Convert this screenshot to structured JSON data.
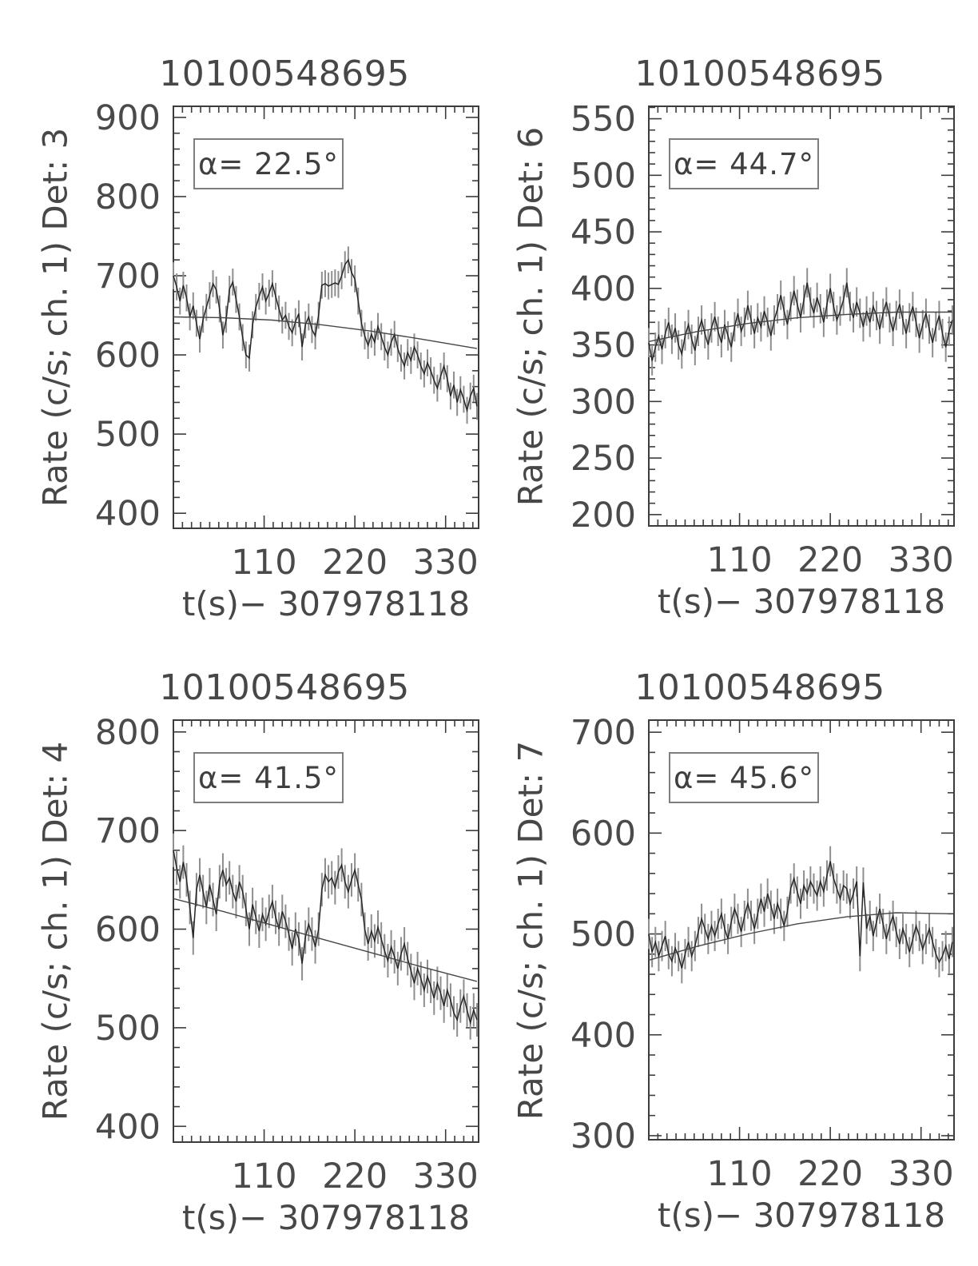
{
  "colors": {
    "background": "#ffffff",
    "axis": "#3c3c3c",
    "text": "#4a4a4a",
    "data_line": "#262626",
    "error_bar": "#8e8e8e",
    "trend_line": "#474747",
    "annotation_border": "#7e7e7e"
  },
  "chart_data": [
    {
      "type": "line",
      "title": "10100548695",
      "ylabel": "Rate (c/s; ch. 1) Det: 3",
      "xlabel": "t(s)−  307978118",
      "detector": 3,
      "alpha_deg": 22.5,
      "annotation": "α=  22.5°",
      "xlim": [
        0,
        370
      ],
      "ylim": [
        381,
        914
      ],
      "xticks": [
        110,
        220,
        330
      ],
      "xtick_minor_step": 11,
      "yticks": [
        400,
        500,
        600,
        700,
        800,
        900
      ],
      "ytick_minor_step": 20,
      "t_start": 0,
      "t_step": 4,
      "error_bar": 17,
      "values": [
        700,
        686,
        668,
        688,
        672,
        648,
        662,
        640,
        620,
        645,
        660,
        675,
        690,
        682,
        658,
        625,
        645,
        683,
        692,
        670,
        648,
        622,
        600,
        596,
        638,
        660,
        674,
        686,
        668,
        678,
        690,
        674,
        658,
        644,
        650,
        636,
        628,
        642,
        652,
        610,
        638,
        648,
        632,
        624,
        650,
        688,
        690,
        687,
        689,
        691,
        689,
        700,
        714,
        720,
        704,
        696,
        668,
        640,
        624,
        612,
        626,
        616,
        636,
        623,
        610,
        600,
        616,
        626,
        608,
        596,
        586,
        603,
        593,
        610,
        600,
        586,
        576,
        590,
        580,
        568,
        558,
        573,
        586,
        570,
        548,
        562,
        540,
        556,
        544,
        530,
        548,
        558,
        535
      ],
      "trend": [
        [
          0,
          648
        ],
        [
          60,
          647
        ],
        [
          120,
          644
        ],
        [
          180,
          638
        ],
        [
          240,
          630
        ],
        [
          300,
          620
        ],
        [
          368,
          608
        ]
      ]
    },
    {
      "type": "line",
      "title": "10100548695",
      "ylabel": "Rate (c/s; ch. 1) Det: 6",
      "xlabel": "t(s)−  307978118",
      "detector": 6,
      "alpha_deg": 44.7,
      "annotation": "α=  44.7°",
      "xlim": [
        0,
        370
      ],
      "ylim": [
        190,
        561
      ],
      "xticks": [
        110,
        220,
        330
      ],
      "xtick_minor_step": 11,
      "yticks": [
        200,
        250,
        300,
        350,
        400,
        450,
        500,
        550
      ],
      "ytick_minor_step": 10,
      "t_start": 0,
      "t_step": 4,
      "error_bar": 13,
      "values": [
        352,
        336,
        348,
        358,
        346,
        360,
        370,
        355,
        365,
        350,
        342,
        358,
        368,
        355,
        345,
        362,
        372,
        360,
        350,
        365,
        375,
        362,
        352,
        368,
        358,
        348,
        366,
        378,
        362,
        370,
        385,
        372,
        360,
        374,
        366,
        380,
        370,
        358,
        372,
        382,
        394,
        380,
        368,
        384,
        398,
        386,
        374,
        390,
        405,
        388,
        378,
        392,
        382,
        370,
        386,
        400,
        384,
        372,
        380,
        390,
        405,
        384,
        374,
        388,
        378,
        366,
        380,
        370,
        384,
        376,
        364,
        378,
        388,
        374,
        362,
        376,
        386,
        372,
        360,
        374,
        384,
        370,
        356,
        368,
        378,
        364,
        352,
        366,
        376,
        360,
        348,
        362,
        372
      ],
      "trend": [
        [
          0,
          353
        ],
        [
          60,
          362
        ],
        [
          120,
          369
        ],
        [
          180,
          374
        ],
        [
          240,
          377
        ],
        [
          300,
          379
        ],
        [
          368,
          379
        ]
      ]
    },
    {
      "type": "line",
      "title": "10100548695",
      "ylabel": "Rate (c/s; ch. 1) Det: 4",
      "xlabel": "t(s)−  307978118",
      "detector": 4,
      "alpha_deg": 41.5,
      "annotation": "α=  41.5°",
      "xlim": [
        0,
        370
      ],
      "ylim": [
        384,
        812
      ],
      "xticks": [
        110,
        220,
        330
      ],
      "xtick_minor_step": 11,
      "yticks": [
        400,
        500,
        600,
        700,
        800
      ],
      "ytick_minor_step": 20,
      "t_start": 0,
      "t_step": 4,
      "error_bar": 17,
      "values": [
        680,
        662,
        648,
        668,
        650,
        622,
        591,
        640,
        655,
        638,
        622,
        645,
        630,
        615,
        648,
        660,
        645,
        652,
        638,
        628,
        648,
        638,
        620,
        600,
        625,
        612,
        598,
        615,
        605,
        618,
        628,
        612,
        600,
        618,
        608,
        595,
        580,
        600,
        590,
        565,
        592,
        605,
        595,
        582,
        600,
        640,
        655,
        648,
        652,
        642,
        658,
        665,
        648,
        638,
        650,
        660,
        645,
        630,
        600,
        585,
        598,
        588,
        602,
        590,
        578,
        568,
        582,
        572,
        560,
        575,
        585,
        570,
        558,
        545,
        560,
        550,
        538,
        552,
        542,
        530,
        545,
        535,
        522,
        538,
        528,
        515,
        508,
        522,
        532,
        518,
        505,
        518,
        508
      ],
      "trend": [
        [
          0,
          631
        ],
        [
          60,
          618
        ],
        [
          120,
          604
        ],
        [
          180,
          590
        ],
        [
          240,
          576
        ],
        [
          300,
          562
        ],
        [
          368,
          547
        ]
      ]
    },
    {
      "type": "line",
      "title": "10100548695",
      "ylabel": "Rate (c/s; ch. 1) Det: 7",
      "xlabel": "t(s)−  307978118",
      "detector": 7,
      "alpha_deg": 45.6,
      "annotation": "α=  45.6°",
      "xlim": [
        0,
        370
      ],
      "ylim": [
        296,
        712
      ],
      "xticks": [
        110,
        220,
        330
      ],
      "xtick_minor_step": 11,
      "yticks": [
        300,
        400,
        500,
        600,
        700
      ],
      "ytick_minor_step": 20,
      "t_start": 0,
      "t_step": 4,
      "error_bar": 15,
      "values": [
        500,
        482,
        492,
        478,
        488,
        498,
        480,
        473,
        486,
        478,
        466,
        480,
        492,
        478,
        488,
        502,
        515,
        505,
        495,
        508,
        498,
        510,
        520,
        505,
        495,
        512,
        525,
        515,
        502,
        518,
        530,
        518,
        505,
        520,
        535,
        522,
        540,
        528,
        515,
        530,
        520,
        508,
        522,
        545,
        555,
        542,
        530,
        548,
        540,
        552,
        545,
        538,
        552,
        542,
        558,
        572,
        555,
        545,
        535,
        548,
        545,
        530,
        540,
        552,
        478,
        551,
        505,
        518,
        498,
        512,
        525,
        510,
        495,
        508,
        518,
        502,
        490,
        505,
        495,
        482,
        495,
        508,
        498,
        485,
        495,
        505,
        492,
        480,
        472,
        478,
        488,
        475,
        492
      ],
      "trend": [
        [
          0,
          474
        ],
        [
          60,
          488
        ],
        [
          120,
          500
        ],
        [
          180,
          510
        ],
        [
          240,
          517
        ],
        [
          300,
          521
        ],
        [
          368,
          520
        ]
      ]
    }
  ]
}
